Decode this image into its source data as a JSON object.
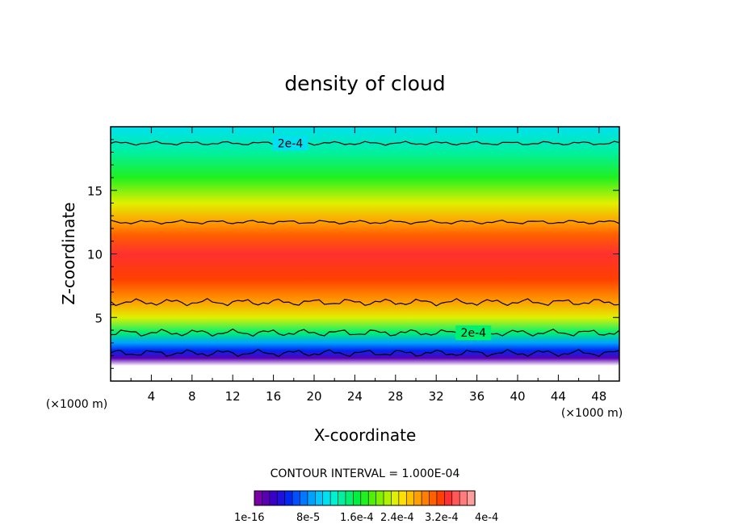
{
  "chart_data": {
    "type": "heatmap",
    "title": "density of cloud",
    "xlabel": "X-coordinate",
    "ylabel": "Z-coordinate",
    "x_unit": "(×1000 m)",
    "y_unit": "(×1000 m)",
    "xlim": [
      0,
      50
    ],
    "ylim": [
      0,
      20
    ],
    "x_ticks": [
      4,
      8,
      12,
      16,
      20,
      24,
      28,
      32,
      36,
      40,
      44,
      48
    ],
    "y_ticks": [
      5,
      10,
      15
    ],
    "contour_interval_text": "CONTOUR INTERVAL = 1.000E-04",
    "contour_lines": [
      {
        "level_label": "2e-4",
        "z": 18.7,
        "label_x": 17.5
      },
      {
        "level_label": "",
        "z": 12.5,
        "label_x": null
      },
      {
        "level_label": "",
        "z": 6.2,
        "label_x": null
      },
      {
        "level_label": "2e-4",
        "z": 3.8,
        "label_x": 35.5
      },
      {
        "level_label": "",
        "z": 2.2,
        "label_x": null
      }
    ],
    "vertical_profile": [
      {
        "z": 1.2,
        "value": 0.0
      },
      {
        "z": 1.8,
        "value": 2e-05
      },
      {
        "z": 2.4,
        "value": 6e-05
      },
      {
        "z": 3.0,
        "value": 0.00011
      },
      {
        "z": 3.8,
        "value": 0.00017
      },
      {
        "z": 5.0,
        "value": 0.00025
      },
      {
        "z": 6.2,
        "value": 0.0003
      },
      {
        "z": 8.0,
        "value": 0.00034
      },
      {
        "z": 10.0,
        "value": 0.00035
      },
      {
        "z": 11.5,
        "value": 0.00033
      },
      {
        "z": 12.5,
        "value": 0.0003
      },
      {
        "z": 14.0,
        "value": 0.00025
      },
      {
        "z": 16.0,
        "value": 0.0002
      },
      {
        "z": 18.0,
        "value": 0.00016
      },
      {
        "z": 20.0,
        "value": 0.00013
      }
    ],
    "colorbar": {
      "colors": [
        "#7a00a8",
        "#5a00b4",
        "#3a00c8",
        "#2010dc",
        "#0028f0",
        "#0050ff",
        "#0078ff",
        "#00a0ff",
        "#00c8ff",
        "#00e0f0",
        "#00f0d0",
        "#00f0a0",
        "#00f070",
        "#00f040",
        "#20f020",
        "#50f000",
        "#80f000",
        "#b0f000",
        "#e0f000",
        "#ffe000",
        "#ffc000",
        "#ffa000",
        "#ff8000",
        "#ff6000",
        "#ff4000",
        "#ff3030",
        "#ff5858",
        "#ff7c7c",
        "#ff9c9c"
      ],
      "tick_labels": [
        "1e-16",
        "8e-5",
        "1.6e-4",
        "2.4e-4",
        "3.2e-4",
        "4e-4"
      ]
    }
  }
}
